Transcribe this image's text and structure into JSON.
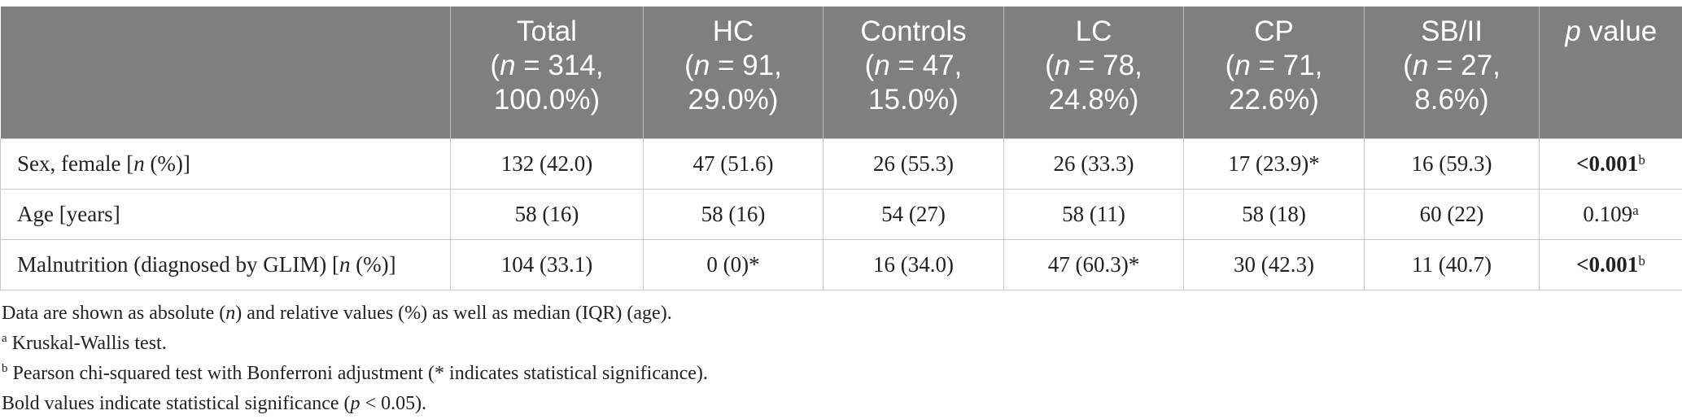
{
  "table": {
    "columns": [
      {
        "name": "",
        "n": "",
        "pct": ""
      },
      {
        "name": "Total",
        "n": "314,",
        "pct": "100.0%)"
      },
      {
        "name": "HC",
        "n": "91,",
        "pct": "29.0%)"
      },
      {
        "name": "Controls",
        "n": "47,",
        "pct": "15.0%)"
      },
      {
        "name": "LC",
        "n": "78,",
        "pct": "24.8%)"
      },
      {
        "name": "CP",
        "n": "71,",
        "pct": "22.6%)"
      },
      {
        "name": "SB/II",
        "n": "27,",
        "pct": "8.6%)"
      }
    ],
    "pvalue_header": {
      "italic": "p",
      "rest": " value"
    },
    "rows": [
      {
        "label_pre": "Sex, female [",
        "label_italic": "n",
        "label_post": " (%)]",
        "cells": [
          "132 (42.0)",
          "47 (51.6)",
          "26 (55.3)",
          "26 (33.3)",
          "17 (23.9)*",
          "16 (59.3)"
        ],
        "p": "<0.001",
        "p_sup": "b",
        "p_bold": true
      },
      {
        "label_pre": "Age [years]",
        "label_italic": "",
        "label_post": "",
        "cells": [
          "58 (16)",
          "58 (16)",
          "54 (27)",
          "58 (11)",
          "58 (18)",
          "60 (22)"
        ],
        "p": "0.109",
        "p_sup": "a",
        "p_bold": false
      },
      {
        "label_pre": "Malnutrition (diagnosed by GLIM) [",
        "label_italic": "n",
        "label_post": " (%)]",
        "cells": [
          "104 (33.1)",
          "0 (0)*",
          "16 (34.0)",
          "47 (60.3)*",
          "30 (42.3)",
          "11 (40.7)"
        ],
        "p": "<0.001",
        "p_sup": "b",
        "p_bold": true
      }
    ]
  },
  "notes": {
    "line1": {
      "a": "Data are shown as absolute (",
      "b": "n",
      "c": ") and relative values (%) as well as median (IQR) (age)."
    },
    "line2": {
      "sup": "a",
      "text": " Kruskal-Wallis test."
    },
    "line3": {
      "sup": "b",
      "text": " Pearson chi-squared test with Bonferroni adjustment (* indicates statistical significance)."
    },
    "line4": {
      "a": "Bold values indicate statistical significance (",
      "b": "p",
      "c": " < 0.05)."
    }
  }
}
